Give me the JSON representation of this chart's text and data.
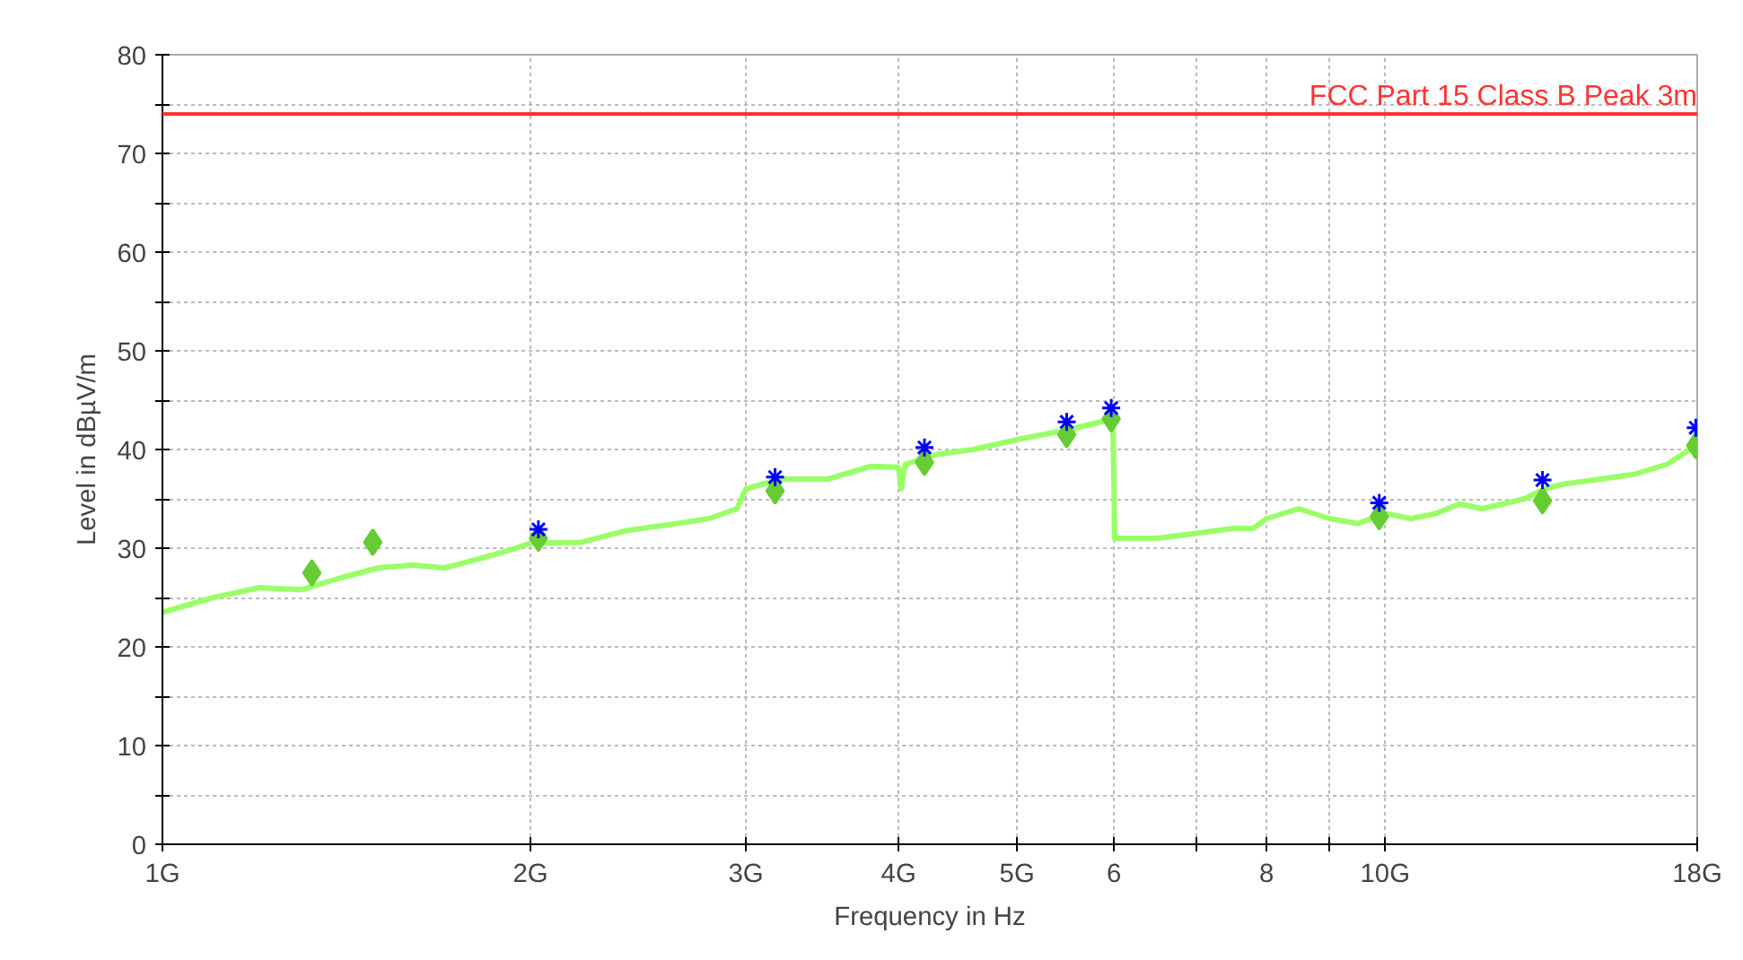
{
  "chart_data": {
    "type": "line",
    "xlabel": "Frequency in Hz",
    "ylabel": "Level in dBµV/m",
    "log": "x",
    "grid": true,
    "xlim": [
      1,
      18
    ],
    "ylim": [
      0,
      80
    ],
    "xticks": [
      {
        "value": 1,
        "label": "1G"
      },
      {
        "value": 2,
        "label": "2G"
      },
      {
        "value": 3,
        "label": "3G"
      },
      {
        "value": 4,
        "label": "4G"
      },
      {
        "value": 5,
        "label": "5G"
      },
      6,
      {
        "value": 7,
        "label": null
      },
      8,
      {
        "value": 9,
        "label": null
      },
      {
        "value": 10,
        "label": "10G"
      },
      {
        "value": 18,
        "label": "18G"
      }
    ],
    "yticks": [
      0,
      {
        "value": 5,
        "label": null
      },
      10,
      {
        "value": 15,
        "label": null
      },
      20,
      {
        "value": 25,
        "label": null
      },
      30,
      {
        "value": 35,
        "label": null
      },
      40,
      {
        "value": 45,
        "label": null
      },
      50,
      {
        "value": 55,
        "label": null
      },
      60,
      {
        "value": 65,
        "label": null
      },
      70,
      {
        "value": 75,
        "label": null
      },
      80
    ],
    "ref_lines": [
      {
        "axis": "y",
        "value": 74,
        "label": "FCC Part 15 Class B Peak 3m",
        "color": "#ff3333",
        "line_style": "solid"
      }
    ],
    "series": [
      {
        "marker": "none",
        "line_style": "solid",
        "color": "#99ff66",
        "x": [
          1.0,
          1.1,
          1.2,
          1.3,
          1.4,
          1.5,
          1.6,
          1.7,
          1.8,
          1.9,
          2.0,
          2.2,
          2.4,
          2.6,
          2.8,
          2.95,
          3.0,
          3.2,
          3.5,
          3.8,
          4.0,
          4.02,
          4.05,
          4.3,
          4.6,
          5.0,
          5.5,
          5.95,
          5.99,
          6.01,
          6.5,
          7.0,
          7.5,
          7.8,
          8.0,
          8.5,
          9.0,
          9.5,
          10.0,
          10.5,
          11.0,
          11.5,
          12.0,
          13.0,
          13.5,
          14.0,
          15.0,
          16.0,
          17.0,
          17.5,
          18.0
        ],
        "values": [
          23.5,
          25,
          26,
          25.8,
          27,
          28,
          28.3,
          28,
          28.8,
          29.6,
          30.5,
          30.6,
          31.8,
          32.4,
          33,
          34,
          36,
          37,
          37,
          38.3,
          38.2,
          36,
          38.5,
          39.5,
          40,
          41,
          42,
          43,
          42.5,
          31,
          31,
          31.5,
          32,
          32,
          33,
          34,
          33,
          32.5,
          33.5,
          33,
          33.5,
          34.5,
          34,
          35,
          36,
          36.5,
          37,
          37.5,
          38.5,
          39.5,
          40.5
        ]
      },
      {
        "type": "scatter",
        "marker": "diamond",
        "color": "#66cc33",
        "x": [
          1.325,
          1.486,
          2.03,
          3.17,
          4.2,
          5.49,
          5.97,
          9.89,
          13.45,
          17.95
        ],
        "values": [
          27.5,
          30.6,
          31.0,
          35.8,
          38.7,
          41.5,
          43.1,
          33.2,
          34.8,
          40.4
        ]
      },
      {
        "type": "scatter",
        "marker": "cross",
        "color": "#0000ff",
        "x": [
          2.03,
          3.17,
          4.2,
          5.49,
          5.97,
          9.89,
          13.45,
          17.95
        ],
        "values": [
          31.9,
          37.2,
          40.2,
          42.8,
          44.2,
          34.6,
          36.9,
          42.2
        ]
      }
    ]
  }
}
